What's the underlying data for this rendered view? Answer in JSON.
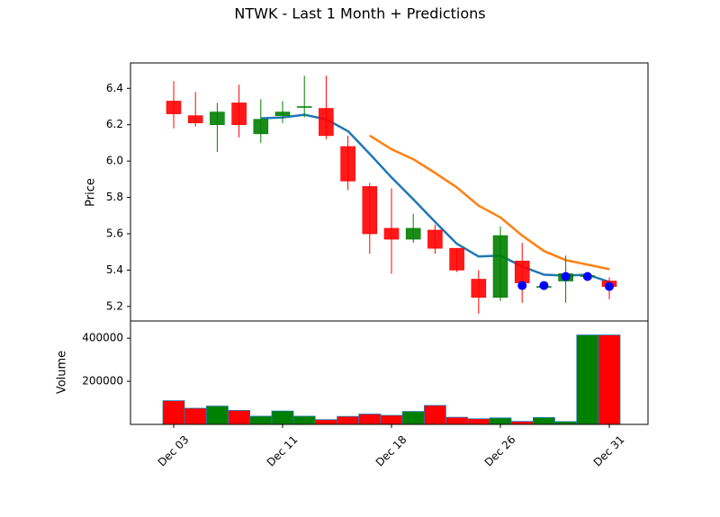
{
  "chart_data": {
    "type": "candlestick",
    "title": "NTWK - Last 1 Month + Predictions",
    "price_ylabel": "Price",
    "volume_ylabel": "Volume",
    "price_ylim": [
      5.12,
      6.54
    ],
    "price_yticks": [
      "5.2",
      "5.4",
      "5.6",
      "5.8",
      "6.0",
      "6.2",
      "6.4"
    ],
    "volume_ylim": [
      0,
      480000
    ],
    "volume_yticks": [
      "200000",
      "400000"
    ],
    "x_ticks": [
      {
        "index": 0,
        "label": "Dec 03"
      },
      {
        "index": 5,
        "label": "Dec 11"
      },
      {
        "index": 10,
        "label": "Dec 18"
      },
      {
        "index": 15,
        "label": "Dec 26"
      },
      {
        "index": 20,
        "label": "Dec 31"
      }
    ],
    "up_color": "#008000",
    "down_color": "#ff0000",
    "ma_short_color": "#1f77b4",
    "ma_long_color": "#ff7f0e",
    "prediction_color": "#0000ff",
    "candles": [
      {
        "o": 6.33,
        "h": 6.44,
        "l": 6.18,
        "c": 6.26,
        "v": 110000
      },
      {
        "o": 6.25,
        "h": 6.38,
        "l": 6.19,
        "c": 6.21,
        "v": 75000
      },
      {
        "o": 6.2,
        "h": 6.32,
        "l": 6.05,
        "c": 6.27,
        "v": 85000
      },
      {
        "o": 6.32,
        "h": 6.42,
        "l": 6.13,
        "c": 6.2,
        "v": 65000
      },
      {
        "o": 6.15,
        "h": 6.34,
        "l": 6.1,
        "c": 6.23,
        "v": 38000
      },
      {
        "o": 6.25,
        "h": 6.33,
        "l": 6.21,
        "c": 6.27,
        "v": 62000
      },
      {
        "o": 6.3,
        "h": 6.47,
        "l": 6.24,
        "c": 6.3,
        "v": 38000
      },
      {
        "o": 6.29,
        "h": 6.47,
        "l": 6.12,
        "c": 6.14,
        "v": 22000
      },
      {
        "o": 6.08,
        "h": 6.14,
        "l": 5.84,
        "c": 5.89,
        "v": 37000
      },
      {
        "o": 5.86,
        "h": 5.88,
        "l": 5.49,
        "c": 5.6,
        "v": 48000
      },
      {
        "o": 5.63,
        "h": 5.85,
        "l": 5.38,
        "c": 5.57,
        "v": 42000
      },
      {
        "o": 5.57,
        "h": 5.71,
        "l": 5.55,
        "c": 5.63,
        "v": 60000
      },
      {
        "o": 5.62,
        "h": 5.65,
        "l": 5.49,
        "c": 5.52,
        "v": 88000
      },
      {
        "o": 5.52,
        "h": 5.52,
        "l": 5.39,
        "c": 5.4,
        "v": 33000
      },
      {
        "o": 5.35,
        "h": 5.4,
        "l": 5.16,
        "c": 5.25,
        "v": 26000
      },
      {
        "o": 5.25,
        "h": 5.64,
        "l": 5.23,
        "c": 5.59,
        "v": 30000
      },
      {
        "o": 5.45,
        "h": 5.55,
        "l": 5.22,
        "c": 5.33,
        "v": 14000
      },
      {
        "o": 5.31,
        "h": 5.32,
        "l": 5.31,
        "c": 5.31,
        "v": 32000
      },
      {
        "o": 5.34,
        "h": 5.48,
        "l": 5.22,
        "c": 5.38,
        "v": 13000
      },
      {
        "o": 5.37,
        "h": 5.37,
        "l": 5.36,
        "c": 5.37,
        "v": 415000
      },
      {
        "o": 5.34,
        "h": 5.36,
        "l": 5.24,
        "c": 5.31,
        "v": 415000
      }
    ],
    "ma_short": [
      null,
      null,
      null,
      null,
      6.235,
      6.24,
      6.255,
      6.23,
      6.165,
      6.04,
      5.91,
      5.79,
      5.665,
      5.545,
      5.475,
      5.48,
      5.42,
      5.375,
      5.37,
      5.375,
      5.335
    ],
    "ma_long": [
      null,
      null,
      null,
      null,
      null,
      null,
      null,
      null,
      null,
      6.14,
      6.065,
      6.01,
      5.935,
      5.855,
      5.755,
      5.69,
      5.59,
      5.505,
      5.455,
      5.43,
      5.405
    ],
    "predictions": [
      {
        "index": 16,
        "value": 5.315
      },
      {
        "index": 17,
        "value": 5.315
      },
      {
        "index": 18,
        "value": 5.365
      },
      {
        "index": 19,
        "value": 5.365
      },
      {
        "index": 20,
        "value": 5.31
      }
    ]
  }
}
